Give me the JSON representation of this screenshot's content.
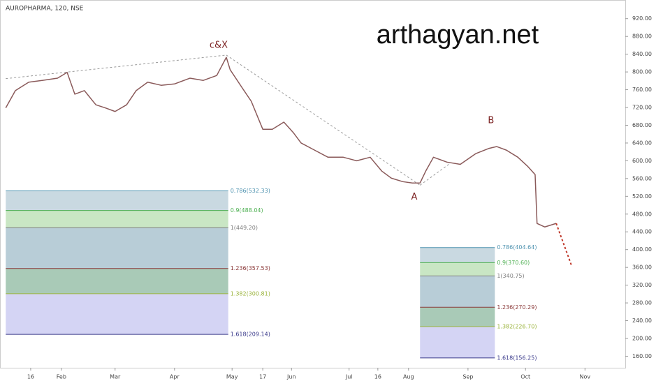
{
  "chart_data": {
    "type": "line",
    "title": "AUROPHARMA, 120, NSE",
    "watermark": "arthagyan.net",
    "xlim": [
      0,
      326
    ],
    "ylim": [
      134,
      962
    ],
    "xticks": [
      {
        "value": 16,
        "label": "16"
      },
      {
        "value": 32,
        "label": "Feb"
      },
      {
        "value": 60,
        "label": "Mar"
      },
      {
        "value": 91,
        "label": "Apr"
      },
      {
        "value": 121,
        "label": "May"
      },
      {
        "value": 137,
        "label": "17"
      },
      {
        "value": 152,
        "label": "Jun"
      },
      {
        "value": 182,
        "label": "Jul"
      },
      {
        "value": 197,
        "label": "16"
      },
      {
        "value": 213,
        "label": "Aug"
      },
      {
        "value": 244,
        "label": "Sep"
      },
      {
        "value": 274,
        "label": "Oct"
      },
      {
        "value": 305,
        "label": "Nov"
      }
    ],
    "yticks": [
      {
        "value": 160,
        "label": "160.00"
      },
      {
        "value": 200,
        "label": "200.00"
      },
      {
        "value": 240,
        "label": "240.00"
      },
      {
        "value": 280,
        "label": "280.00"
      },
      {
        "value": 320,
        "label": "320.00"
      },
      {
        "value": 360,
        "label": "360.00"
      },
      {
        "value": 400,
        "label": "400.00"
      },
      {
        "value": 440,
        "label": "440.00"
      },
      {
        "value": 480,
        "label": "480.00"
      },
      {
        "value": 520,
        "label": "520.00"
      },
      {
        "value": 560,
        "label": "560.00"
      },
      {
        "value": 600,
        "label": "600.00"
      },
      {
        "value": 640,
        "label": "640.00"
      },
      {
        "value": 680,
        "label": "680.00"
      },
      {
        "value": 720,
        "label": "720.00"
      },
      {
        "value": 760,
        "label": "760.00"
      },
      {
        "value": 800,
        "label": "800.00"
      },
      {
        "value": 840,
        "label": "840.00"
      },
      {
        "value": 880,
        "label": "880.00"
      },
      {
        "value": 920,
        "label": "920.00"
      }
    ],
    "series": [
      {
        "name": "AUROPHARMA",
        "color": "#8a5a5a",
        "x": [
          3,
          8,
          15,
          22,
          30,
          35,
          39,
          44,
          50,
          55,
          60,
          66,
          71,
          77,
          84,
          91,
          99,
          106,
          113,
          118,
          120,
          126,
          131,
          137,
          142,
          148,
          153,
          157,
          164,
          171,
          179,
          186,
          193,
          199,
          204,
          210,
          215,
          219,
          222,
          226,
          233,
          240,
          248,
          255,
          259,
          264,
          270,
          275,
          279,
          280,
          284,
          290
        ],
        "values": [
          719,
          758,
          777,
          781,
          786,
          799,
          750,
          758,
          726,
          719,
          711,
          726,
          758,
          777,
          770,
          773,
          786,
          781,
          792,
          833,
          805,
          766,
          734,
          671,
          671,
          687,
          663,
          640,
          624,
          608,
          608,
          600,
          608,
          577,
          561,
          553,
          550,
          550,
          577,
          608,
          597,
          592,
          616,
          628,
          632,
          624,
          608,
          588,
          569,
          459,
          451,
          459
        ]
      },
      {
        "name": "Projection",
        "color": "#c0392b",
        "dashed": true,
        "x": [
          290,
          298
        ],
        "values": [
          459,
          364
        ]
      }
    ],
    "trendlines": [
      {
        "x": [
          3,
          118
        ],
        "values": [
          785,
          838
        ]
      },
      {
        "x": [
          118,
          219
        ],
        "values": [
          838,
          545
        ]
      },
      {
        "x": [
          219,
          234
        ],
        "values": [
          545,
          592
        ]
      }
    ],
    "annotations": [
      {
        "text": "c&X",
        "x": 114,
        "value": 860
      },
      {
        "text": "A",
        "x": 216,
        "value": 518
      },
      {
        "text": "B",
        "x": 256,
        "value": 690
      }
    ],
    "fib_panels": [
      {
        "x": [
          3,
          119
        ],
        "levels": [
          {
            "value": 532.33,
            "label": "0.786(532.33)",
            "color": "#4f93b0"
          },
          {
            "value": 488.04,
            "label": "0.9(488.04)",
            "color": "#4caf50"
          },
          {
            "value": 449.2,
            "label": "1(449.20)",
            "color": "#808080"
          },
          {
            "value": 357.53,
            "label": "1.236(357.53)",
            "color": "#8b3a3a"
          },
          {
            "value": 300.81,
            "label": "1.382(300.81)",
            "color": "#9ab33a"
          },
          {
            "value": 209.14,
            "label": "1.618(209.14)",
            "color": "#3a3a8b"
          }
        ],
        "band_colors": [
          "#c9d9e1",
          "#c9e6c4",
          "#b8cdd7",
          "#a9cab7",
          "#d4d4f4"
        ]
      },
      {
        "x": [
          219,
          258
        ],
        "levels": [
          {
            "value": 404.64,
            "label": "0.786(404.64)",
            "color": "#4f93b0"
          },
          {
            "value": 370.6,
            "label": "0.9(370.60)",
            "color": "#4caf50"
          },
          {
            "value": 340.75,
            "label": "1(340.75)",
            "color": "#808080"
          },
          {
            "value": 270.29,
            "label": "1.236(270.29)",
            "color": "#8b3a3a"
          },
          {
            "value": 226.7,
            "label": "1.382(226.70)",
            "color": "#9ab33a"
          },
          {
            "value": 156.25,
            "label": "1.618(156.25)",
            "color": "#3a3a8b"
          }
        ],
        "band_colors": [
          "#c9d9e1",
          "#c9e6c4",
          "#b8cdd7",
          "#a9cab7",
          "#d4d4f4"
        ]
      }
    ]
  }
}
